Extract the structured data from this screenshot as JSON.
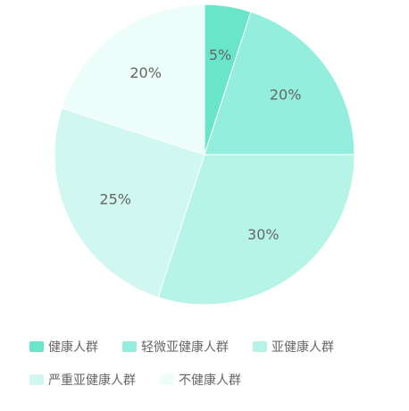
{
  "chart_data": {
    "type": "pie",
    "categories": [
      "健康人群",
      "轻微亚健康人群",
      "亚健康人群",
      "严重亚健康人群",
      "不健康人群"
    ],
    "values": [
      5,
      20,
      30,
      25,
      20
    ],
    "labels": [
      "5%",
      "20%",
      "30%",
      "25%",
      "20%"
    ],
    "colors": [
      "#69e6ca",
      "#93eedd",
      "#b5f4e7",
      "#d0f8f0",
      "#edfdf9"
    ],
    "title": "",
    "legend_position": "bottom"
  }
}
